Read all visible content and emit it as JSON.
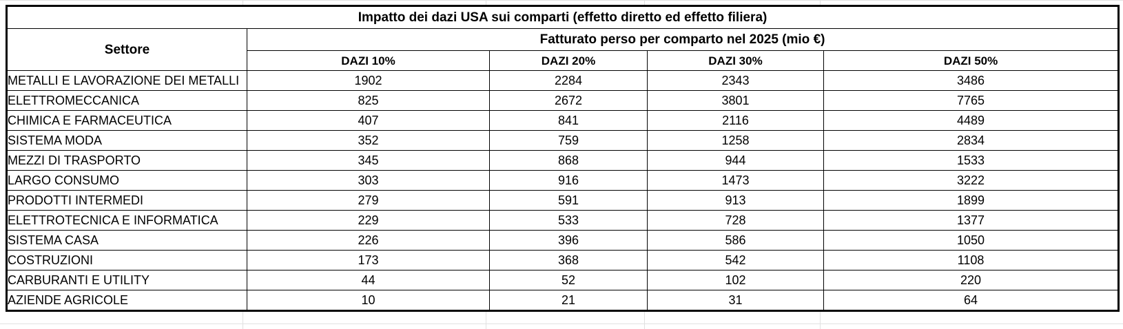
{
  "table": {
    "title": "Impatto dei dazi USA sui comparti (effetto diretto ed effetto filiera)",
    "row_header": "Settore",
    "group_header": "Fatturato perso per comparto nel 2025 (mio €)",
    "columns": [
      "DAZI 10%",
      "DAZI 20%",
      "DAZI 30%",
      "DAZI 50%"
    ],
    "rows": [
      {
        "sector": "METALLI E LAVORAZIONE DEI METALLI",
        "values": [
          "1902",
          "2284",
          "2343",
          "3486"
        ]
      },
      {
        "sector": "ELETTROMECCANICA",
        "values": [
          "825",
          "2672",
          "3801",
          "7765"
        ]
      },
      {
        "sector": "CHIMICA E FARMACEUTICA",
        "values": [
          "407",
          "841",
          "2116",
          "4489"
        ]
      },
      {
        "sector": "SISTEMA MODA",
        "values": [
          "352",
          "759",
          "1258",
          "2834"
        ]
      },
      {
        "sector": "MEZZI DI TRASPORTO",
        "values": [
          "345",
          "868",
          "944",
          "1533"
        ]
      },
      {
        "sector": "LARGO CONSUMO",
        "values": [
          "303",
          "916",
          "1473",
          "3222"
        ]
      },
      {
        "sector": "PRODOTTI INTERMEDI",
        "values": [
          "279",
          "591",
          "913",
          "1899"
        ]
      },
      {
        "sector": "ELETTROTECNICA E INFORMATICA",
        "values": [
          "229",
          "533",
          "728",
          "1377"
        ]
      },
      {
        "sector": "SISTEMA CASA",
        "values": [
          "226",
          "396",
          "586",
          "1050"
        ]
      },
      {
        "sector": "COSTRUZIONI",
        "values": [
          "173",
          "368",
          "542",
          "1108"
        ]
      },
      {
        "sector": "CARBURANTI E UTILITY",
        "values": [
          "44",
          "52",
          "102",
          "220"
        ]
      },
      {
        "sector": "AZIENDE AGRICOLE",
        "values": [
          "10",
          "21",
          "31",
          "64"
        ]
      }
    ]
  }
}
